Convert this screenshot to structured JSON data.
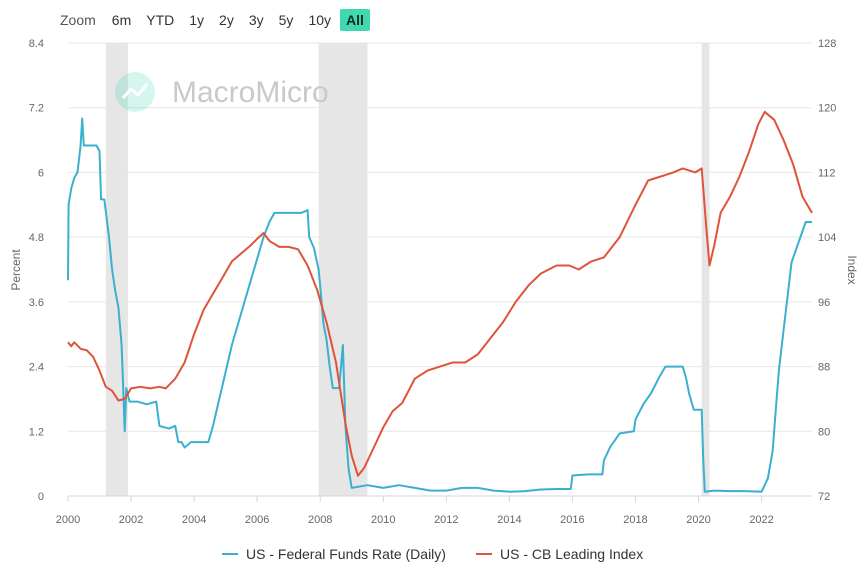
{
  "zoom": {
    "label": "Zoom",
    "buttons": [
      "6m",
      "YTD",
      "1y",
      "2y",
      "3y",
      "5y",
      "10y",
      "All"
    ],
    "active": "All"
  },
  "watermark": {
    "text": "MacroMicro"
  },
  "chart_data": {
    "type": "line",
    "xlim": [
      2000,
      2023.6
    ],
    "x_ticks": [
      "2000",
      "2002",
      "2004",
      "2006",
      "2008",
      "2010",
      "2012",
      "2014",
      "2016",
      "2018",
      "2020",
      "2022"
    ],
    "left_axis": {
      "label": "Percent",
      "ylim": [
        0,
        8.4
      ],
      "ticks": [
        "0",
        "1.2",
        "2.4",
        "3.6",
        "4.8",
        "6",
        "7.2",
        "8.4"
      ]
    },
    "right_axis": {
      "label": "Index",
      "ylim": [
        72,
        128
      ],
      "ticks": [
        "72",
        "80",
        "88",
        "96",
        "104",
        "112",
        "120",
        "128"
      ]
    },
    "recessions": [
      [
        2001.2,
        2001.9
      ],
      [
        2007.95,
        2009.5
      ],
      [
        2020.1,
        2020.35
      ]
    ],
    "grid": true,
    "legend_position": "bottom",
    "colors": {
      "fed": "#3ab0cf",
      "cb": "#e0533a",
      "recession": "#e6e6e6",
      "accent": "#40d8b0"
    },
    "series": [
      {
        "name": "US - Federal Funds Rate (Daily)",
        "axis": "left",
        "points": [
          [
            2000.0,
            4.0
          ],
          [
            2000.02,
            5.4
          ],
          [
            2000.1,
            5.7
          ],
          [
            2000.2,
            5.9
          ],
          [
            2000.3,
            6.0
          ],
          [
            2000.4,
            6.5
          ],
          [
            2000.45,
            7.0
          ],
          [
            2000.5,
            6.5
          ],
          [
            2000.7,
            6.5
          ],
          [
            2000.9,
            6.5
          ],
          [
            2001.0,
            6.4
          ],
          [
            2001.05,
            5.5
          ],
          [
            2001.15,
            5.5
          ],
          [
            2001.3,
            4.8
          ],
          [
            2001.4,
            4.2
          ],
          [
            2001.5,
            3.8
          ],
          [
            2001.6,
            3.5
          ],
          [
            2001.7,
            2.8
          ],
          [
            2001.75,
            2.0
          ],
          [
            2001.8,
            1.2
          ],
          [
            2001.85,
            2.0
          ],
          [
            2001.95,
            1.75
          ],
          [
            2002.2,
            1.75
          ],
          [
            2002.5,
            1.7
          ],
          [
            2002.8,
            1.75
          ],
          [
            2002.9,
            1.3
          ],
          [
            2003.2,
            1.25
          ],
          [
            2003.4,
            1.3
          ],
          [
            2003.5,
            1.0
          ],
          [
            2003.6,
            1.0
          ],
          [
            2003.7,
            0.9
          ],
          [
            2003.9,
            1.0
          ],
          [
            2004.2,
            1.0
          ],
          [
            2004.45,
            1.0
          ],
          [
            2004.6,
            1.3
          ],
          [
            2004.8,
            1.8
          ],
          [
            2005.0,
            2.3
          ],
          [
            2005.2,
            2.8
          ],
          [
            2005.4,
            3.2
          ],
          [
            2005.6,
            3.6
          ],
          [
            2005.8,
            4.0
          ],
          [
            2006.0,
            4.4
          ],
          [
            2006.2,
            4.8
          ],
          [
            2006.4,
            5.1
          ],
          [
            2006.55,
            5.25
          ],
          [
            2006.8,
            5.25
          ],
          [
            2007.0,
            5.25
          ],
          [
            2007.4,
            5.25
          ],
          [
            2007.6,
            5.3
          ],
          [
            2007.65,
            4.8
          ],
          [
            2007.8,
            4.6
          ],
          [
            2007.95,
            4.2
          ],
          [
            2008.0,
            3.9
          ],
          [
            2008.1,
            3.2
          ],
          [
            2008.2,
            2.9
          ],
          [
            2008.3,
            2.4
          ],
          [
            2008.4,
            2.0
          ],
          [
            2008.5,
            2.0
          ],
          [
            2008.6,
            2.0
          ],
          [
            2008.72,
            2.8
          ],
          [
            2008.8,
            1.3
          ],
          [
            2008.9,
            0.5
          ],
          [
            2009.0,
            0.15
          ],
          [
            2009.5,
            0.2
          ],
          [
            2010.0,
            0.15
          ],
          [
            2010.5,
            0.2
          ],
          [
            2011.0,
            0.15
          ],
          [
            2011.5,
            0.1
          ],
          [
            2012.0,
            0.1
          ],
          [
            2012.5,
            0.15
          ],
          [
            2013.0,
            0.15
          ],
          [
            2013.5,
            0.1
          ],
          [
            2014.0,
            0.08
          ],
          [
            2014.5,
            0.09
          ],
          [
            2015.0,
            0.12
          ],
          [
            2015.5,
            0.13
          ],
          [
            2015.95,
            0.13
          ],
          [
            2016.0,
            0.38
          ],
          [
            2016.5,
            0.4
          ],
          [
            2016.95,
            0.4
          ],
          [
            2017.0,
            0.66
          ],
          [
            2017.2,
            0.91
          ],
          [
            2017.5,
            1.16
          ],
          [
            2017.95,
            1.2
          ],
          [
            2018.0,
            1.42
          ],
          [
            2018.25,
            1.7
          ],
          [
            2018.5,
            1.91
          ],
          [
            2018.75,
            2.2
          ],
          [
            2018.95,
            2.4
          ],
          [
            2019.2,
            2.4
          ],
          [
            2019.5,
            2.4
          ],
          [
            2019.6,
            2.2
          ],
          [
            2019.7,
            1.9
          ],
          [
            2019.85,
            1.6
          ],
          [
            2020.1,
            1.6
          ],
          [
            2020.15,
            0.7
          ],
          [
            2020.2,
            0.08
          ],
          [
            2020.5,
            0.1
          ],
          [
            2021.0,
            0.09
          ],
          [
            2021.5,
            0.09
          ],
          [
            2022.0,
            0.08
          ],
          [
            2022.2,
            0.33
          ],
          [
            2022.35,
            0.83
          ],
          [
            2022.45,
            1.58
          ],
          [
            2022.55,
            2.33
          ],
          [
            2022.7,
            3.08
          ],
          [
            2022.85,
            3.83
          ],
          [
            2022.95,
            4.33
          ],
          [
            2023.1,
            4.58
          ],
          [
            2023.25,
            4.83
          ],
          [
            2023.4,
            5.08
          ],
          [
            2023.6,
            5.08
          ]
        ]
      },
      {
        "name": "US - CB Leading Index",
        "axis": "right",
        "points": [
          [
            2000.0,
            91.0
          ],
          [
            2000.1,
            90.5
          ],
          [
            2000.2,
            91.0
          ],
          [
            2000.4,
            90.2
          ],
          [
            2000.6,
            90.0
          ],
          [
            2000.8,
            89.2
          ],
          [
            2001.0,
            87.5
          ],
          [
            2001.2,
            85.5
          ],
          [
            2001.4,
            85.0
          ],
          [
            2001.6,
            83.8
          ],
          [
            2001.8,
            84.0
          ],
          [
            2002.0,
            85.3
          ],
          [
            2002.3,
            85.5
          ],
          [
            2002.6,
            85.3
          ],
          [
            2002.9,
            85.5
          ],
          [
            2003.1,
            85.3
          ],
          [
            2003.4,
            86.5
          ],
          [
            2003.7,
            88.5
          ],
          [
            2004.0,
            92.0
          ],
          [
            2004.3,
            95.0
          ],
          [
            2004.6,
            97.0
          ],
          [
            2004.9,
            99.0
          ],
          [
            2005.2,
            101.0
          ],
          [
            2005.5,
            102.0
          ],
          [
            2005.8,
            103.0
          ],
          [
            2006.0,
            103.8
          ],
          [
            2006.2,
            104.5
          ],
          [
            2006.4,
            103.5
          ],
          [
            2006.7,
            102.8
          ],
          [
            2007.0,
            102.8
          ],
          [
            2007.3,
            102.5
          ],
          [
            2007.6,
            100.5
          ],
          [
            2007.9,
            97.5
          ],
          [
            2008.2,
            93.5
          ],
          [
            2008.5,
            88.5
          ],
          [
            2008.8,
            81.0
          ],
          [
            2009.0,
            77.0
          ],
          [
            2009.2,
            74.5
          ],
          [
            2009.4,
            75.5
          ],
          [
            2009.7,
            78.0
          ],
          [
            2010.0,
            80.5
          ],
          [
            2010.3,
            82.5
          ],
          [
            2010.6,
            83.5
          ],
          [
            2011.0,
            86.5
          ],
          [
            2011.4,
            87.5
          ],
          [
            2011.8,
            88.0
          ],
          [
            2012.2,
            88.5
          ],
          [
            2012.6,
            88.5
          ],
          [
            2013.0,
            89.5
          ],
          [
            2013.4,
            91.5
          ],
          [
            2013.8,
            93.5
          ],
          [
            2014.2,
            96.0
          ],
          [
            2014.6,
            98.0
          ],
          [
            2015.0,
            99.5
          ],
          [
            2015.5,
            100.5
          ],
          [
            2015.9,
            100.5
          ],
          [
            2016.2,
            100.0
          ],
          [
            2016.6,
            101.0
          ],
          [
            2017.0,
            101.5
          ],
          [
            2017.5,
            104.0
          ],
          [
            2018.0,
            108.0
          ],
          [
            2018.4,
            111.0
          ],
          [
            2018.8,
            111.5
          ],
          [
            2019.2,
            112.0
          ],
          [
            2019.5,
            112.5
          ],
          [
            2019.9,
            112.0
          ],
          [
            2020.1,
            112.5
          ],
          [
            2020.25,
            105.0
          ],
          [
            2020.35,
            100.5
          ],
          [
            2020.5,
            103.0
          ],
          [
            2020.7,
            107.0
          ],
          [
            2021.0,
            109.0
          ],
          [
            2021.3,
            111.5
          ],
          [
            2021.6,
            114.5
          ],
          [
            2021.9,
            118.0
          ],
          [
            2022.1,
            119.5
          ],
          [
            2022.4,
            118.5
          ],
          [
            2022.7,
            116.0
          ],
          [
            2023.0,
            113.0
          ],
          [
            2023.3,
            109.0
          ],
          [
            2023.6,
            107.0
          ]
        ]
      }
    ]
  }
}
